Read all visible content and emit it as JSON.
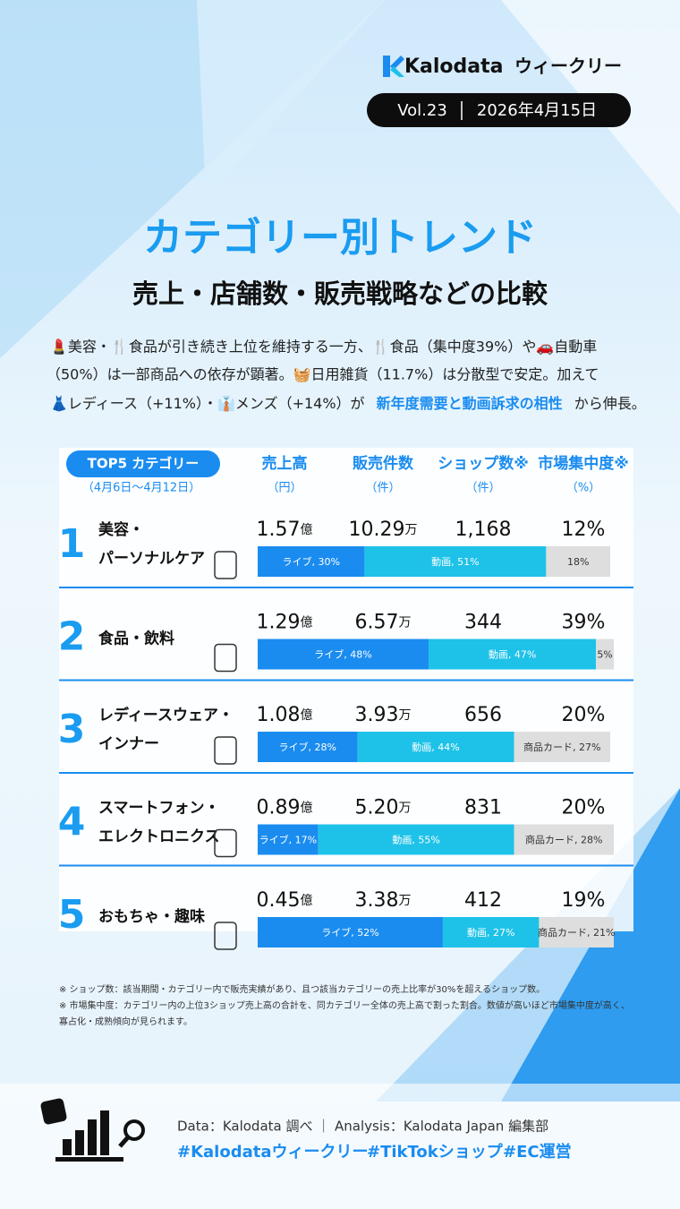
{
  "header": {
    "brand": "Kalodata",
    "series": "ウィークリー",
    "volume": "Vol.23",
    "date": "2026年4月15日"
  },
  "title": "カテゴリー別トレンド",
  "subtitle": "売上・店舗数・販売戦略などの比較",
  "intro": {
    "line1": "💄美容・🍴食品が引き続き上位を維持する一方、🍴食品（集中度39%）や🚗自動車",
    "line2": "（50%）は一部商品への依存が顕著。🧺日用雑貨（11.7%）は分散型で安定。加えて",
    "line3a": "👗レディース（+11%）・👔メンズ（+14%）が",
    "highlight": "新年度需要と動画訴求の相性",
    "line3b": "から伸長。"
  },
  "table": {
    "badge": "TOP5 カテゴリー",
    "period": "（4月6日〜4月12日）",
    "columns": [
      {
        "name": "売上高",
        "unit": "（円）"
      },
      {
        "name": "販売件数",
        "unit": "（件）"
      },
      {
        "name": "ショップ数※",
        "unit": "（件）"
      },
      {
        "name": "市場集中度※",
        "unit": "（%）"
      }
    ],
    "rows": [
      {
        "rank": "1",
        "name": [
          "美容・",
          "パーソナルケア"
        ],
        "sales": "1.57",
        "sales_unit": "億",
        "count": "10.29",
        "count_unit": "万",
        "shops": "1,168",
        "concentration": "12%",
        "segments": [
          {
            "label": "ライブ, 30%",
            "value": 30,
            "color": "#1a8cf0"
          },
          {
            "label": "動画, 51%",
            "value": 51,
            "color": "#1ec2e8"
          },
          {
            "label": "18%",
            "value": 18,
            "color": "#dedede"
          }
        ]
      },
      {
        "rank": "2",
        "name": [
          "食品・飲料"
        ],
        "sales": "1.29",
        "sales_unit": "億",
        "count": "6.57",
        "count_unit": "万",
        "shops": "344",
        "concentration": "39%",
        "segments": [
          {
            "label": "ライブ, 48%",
            "value": 48,
            "color": "#1a8cf0"
          },
          {
            "label": "動画, 47%",
            "value": 47,
            "color": "#1ec2e8"
          },
          {
            "label": "5%",
            "value": 5,
            "color": "#dedede"
          }
        ]
      },
      {
        "rank": "3",
        "name": [
          "レディースウェア・",
          "インナー"
        ],
        "sales": "1.08",
        "sales_unit": "億",
        "count": "3.93",
        "count_unit": "万",
        "shops": "656",
        "concentration": "20%",
        "segments": [
          {
            "label": "ライブ, 28%",
            "value": 28,
            "color": "#1a8cf0"
          },
          {
            "label": "動画, 44%",
            "value": 44,
            "color": "#1ec2e8"
          },
          {
            "label": "商品カード, 27%",
            "value": 27,
            "color": "#dedede"
          }
        ]
      },
      {
        "rank": "4",
        "name": [
          "スマートフォン・",
          "エレクトロニクス"
        ],
        "sales": "0.89",
        "sales_unit": "億",
        "count": "5.20",
        "count_unit": "万",
        "shops": "831",
        "concentration": "20%",
        "segments": [
          {
            "label": "ライブ, 17%",
            "value": 17,
            "color": "#1a8cf0"
          },
          {
            "label": "動画, 55%",
            "value": 55,
            "color": "#1ec2e8"
          },
          {
            "label": "商品カード, 28%",
            "value": 28,
            "color": "#dedede"
          }
        ]
      },
      {
        "rank": "5",
        "name": [
          "おもちゃ・趣味"
        ],
        "sales": "0.45",
        "sales_unit": "億",
        "count": "3.38",
        "count_unit": "万",
        "shops": "412",
        "concentration": "19%",
        "segments": [
          {
            "label": "ライブ, 52%",
            "value": 52,
            "color": "#1a8cf0"
          },
          {
            "label": "動画, 27%",
            "value": 27,
            "color": "#1ec2e8"
          },
          {
            "label": "商品カード, 21%",
            "value": 21,
            "color": "#dedede"
          }
        ]
      }
    ]
  },
  "notes": [
    "※ ショップ数：該当期間・カテゴリー内で販売実績があり、且つ該当カテゴリーの売上比率が30%を超えるショップ数。",
    "※ 市場集中度：カテゴリー内の上位3ショップ売上高の合計を、同カテゴリー全体の売上高で割った割合。数値が高いほど市場集中度が高く、",
    "寡占化・成熟傾向が見られます。"
  ],
  "footer": {
    "source": "Data：Kalodata 調べ ｜ Analysis：Kalodata Japan 編集部",
    "tags": [
      "#Kalodataウィークリー",
      "#TikTokショップ",
      "#EC運営"
    ]
  }
}
